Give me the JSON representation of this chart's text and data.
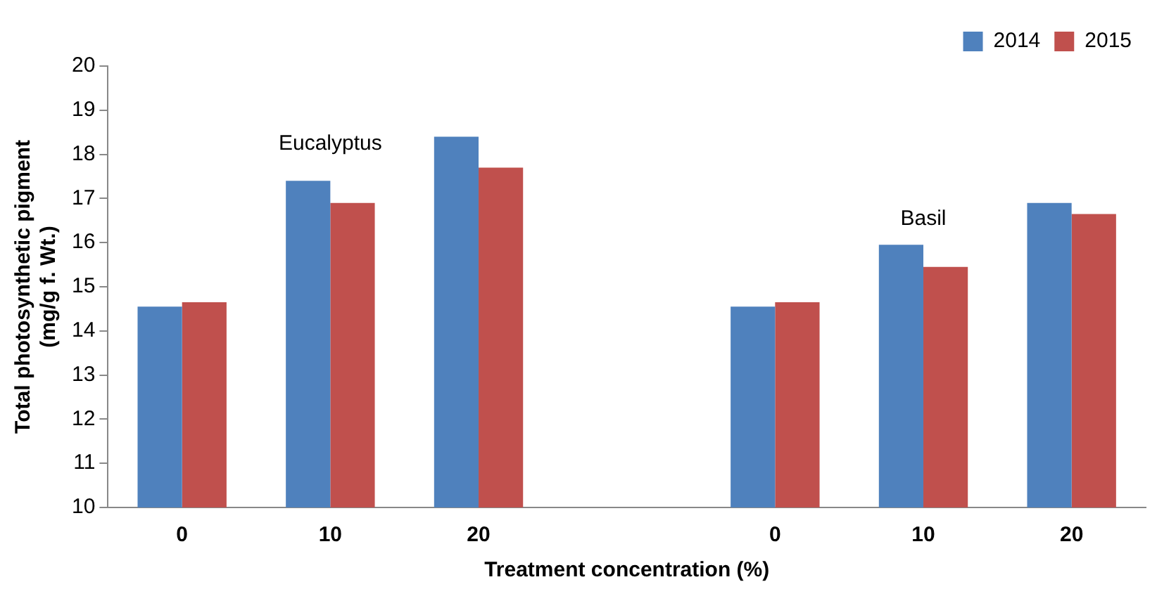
{
  "chart_data": {
    "type": "bar",
    "xlabel": "Treatment concentration (%)",
    "ylabel": "Total photosynthetic pigment\n(mg/g f. Wt.)",
    "categories": [
      "0",
      "10",
      "20",
      null,
      "0",
      "10",
      "20"
    ],
    "series": [
      {
        "name": "2014",
        "color": "#4f81bd",
        "values": [
          14.55,
          17.4,
          18.4,
          null,
          14.55,
          15.95,
          16.9
        ]
      },
      {
        "name": "2015",
        "color": "#c0504d",
        "values": [
          14.65,
          16.9,
          17.7,
          null,
          14.65,
          15.45,
          16.65
        ]
      }
    ],
    "ylim": [
      10,
      20
    ],
    "yticks": [
      10,
      11,
      12,
      13,
      14,
      15,
      16,
      17,
      18,
      19,
      20
    ],
    "grid": false,
    "legend": "top right",
    "annotations": [
      "Eucalyptus",
      "Basil"
    ]
  }
}
